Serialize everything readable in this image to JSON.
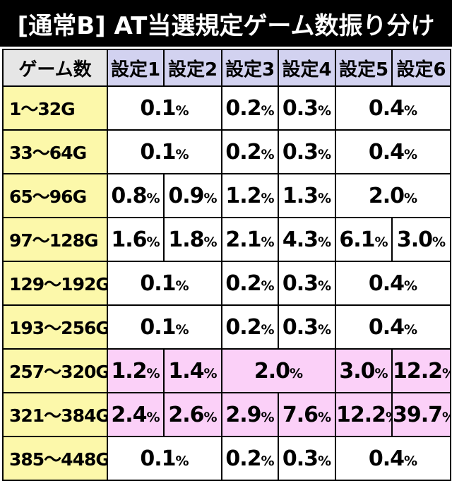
{
  "title": "[通常B] AT当選規定ゲーム数振り分け",
  "header": {
    "corner": "ゲーム数",
    "settings": [
      "設定1",
      "設定2",
      "設定3",
      "設定4",
      "設定5",
      "設定6"
    ]
  },
  "unit": "%",
  "rows": [
    {
      "label": "1〜32G",
      "v1_2": "0.1",
      "v3": "0.2",
      "v4": "0.3",
      "v5_6": "0.4"
    },
    {
      "label": "33〜64G",
      "v1_2": "0.1",
      "v3": "0.2",
      "v4": "0.3",
      "v5_6": "0.4"
    },
    {
      "label": "65〜96G",
      "v1": "0.8",
      "v2": "0.9",
      "v3": "1.2",
      "v4": "1.3",
      "v5_6": "2.0"
    },
    {
      "label": "97〜128G",
      "v1": "1.6",
      "v2": "1.8",
      "v3": "2.1",
      "v4": "4.3",
      "v5": "6.1",
      "v6": "3.0"
    },
    {
      "label": "129〜192G",
      "v1_2": "0.1",
      "v3": "0.2",
      "v4": "0.3",
      "v5_6": "0.4"
    },
    {
      "label": "193〜256G",
      "v1_2": "0.1",
      "v3": "0.2",
      "v4": "0.3",
      "v5_6": "0.4"
    },
    {
      "label": "257〜320G",
      "v1": "1.2",
      "v2": "1.4",
      "v3_4": "2.0",
      "v5": "3.0",
      "v6": "12.2"
    },
    {
      "label": "321〜384G",
      "v1": "2.4",
      "v2": "2.6",
      "v3": "2.9",
      "v4": "7.6",
      "v5": "12.2",
      "v6": "39.7"
    },
    {
      "label": "385〜448G",
      "v1_2": "0.1",
      "v3": "0.2",
      "v4": "0.3",
      "v5_6": "0.4"
    }
  ],
  "colors": {
    "title_bg": "#000000",
    "corner_bg": "#e6e6e6",
    "setting_header_bg": "#d2d2f0",
    "row_label_bg": "#fcf8aa",
    "highlight_bg": "#fbd0f8"
  }
}
